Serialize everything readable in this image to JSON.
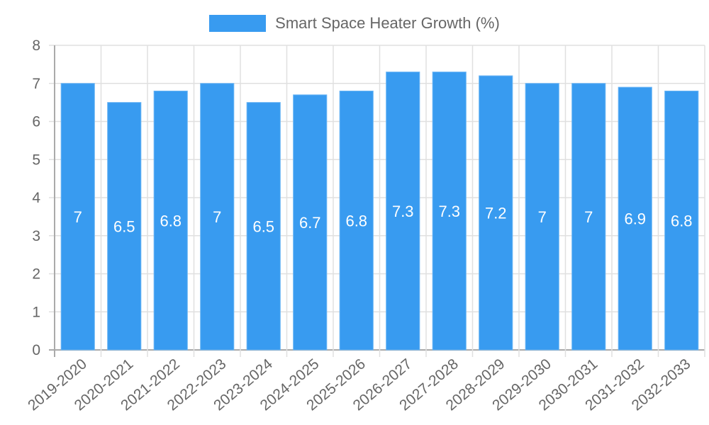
{
  "chart_data": {
    "type": "bar",
    "title": "",
    "legend": [
      {
        "label": "Smart Space Heater Growth (%)",
        "color": "#389BF0"
      }
    ],
    "legend_position": "top",
    "xlabel": "",
    "ylabel": "",
    "ylim": [
      0,
      8
    ],
    "yticks": [
      0,
      1,
      2,
      3,
      4,
      5,
      6,
      7,
      8
    ],
    "grid": true,
    "categories": [
      "2019-2020",
      "2020-2021",
      "2021-2022",
      "2022-2023",
      "2023-2024",
      "2024-2025",
      "2025-2026",
      "2026-2027",
      "2027-2028",
      "2028-2029",
      "2029-2030",
      "2030-2031",
      "2031-2032",
      "2032-2033"
    ],
    "series": [
      {
        "name": "Smart Space Heater Growth (%)",
        "values": [
          7,
          6.5,
          6.8,
          7,
          6.5,
          6.7,
          6.8,
          7.3,
          7.3,
          7.2,
          7,
          7,
          6.9,
          6.8
        ],
        "color": "#389BF0"
      }
    ],
    "data_labels": true
  },
  "legend": {
    "label": "Smart Space Heater Growth (%)",
    "color": "#389BF0"
  }
}
